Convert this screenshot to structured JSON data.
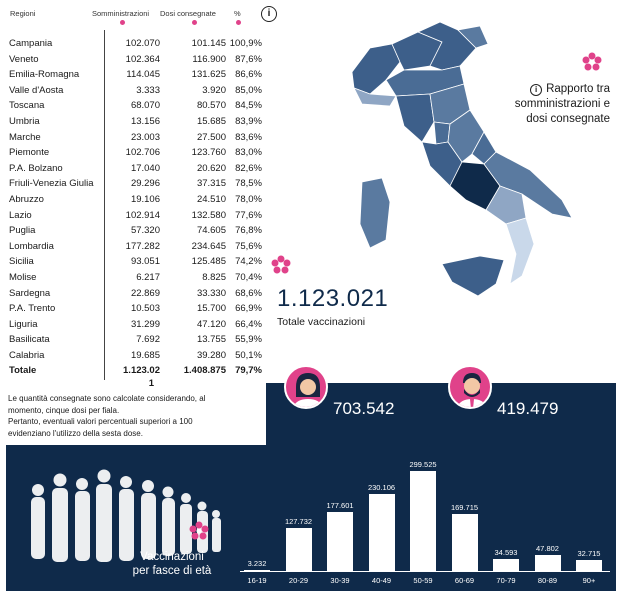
{
  "table": {
    "headers": {
      "region": "Regioni",
      "administered": "Somministrazioni",
      "delivered": "Dosi consegnate",
      "percent": "%"
    },
    "rows": [
      {
        "region": "Campania",
        "administered": "102.070",
        "delivered": "101.145",
        "percent": "100,9%"
      },
      {
        "region": "Veneto",
        "administered": "102.364",
        "delivered": "116.900",
        "percent": "87,6%"
      },
      {
        "region": "Emilia-Romagna",
        "administered": "114.045",
        "delivered": "131.625",
        "percent": "86,6%"
      },
      {
        "region": "Valle d'Aosta",
        "administered": "3.333",
        "delivered": "3.920",
        "percent": "85,0%"
      },
      {
        "region": "Toscana",
        "administered": "68.070",
        "delivered": "80.570",
        "percent": "84,5%"
      },
      {
        "region": "Umbria",
        "administered": "13.156",
        "delivered": "15.685",
        "percent": "83,9%"
      },
      {
        "region": "Marche",
        "administered": "23.003",
        "delivered": "27.500",
        "percent": "83,6%"
      },
      {
        "region": "Piemonte",
        "administered": "102.706",
        "delivered": "123.760",
        "percent": "83,0%"
      },
      {
        "region": "P.A. Bolzano",
        "administered": "17.040",
        "delivered": "20.620",
        "percent": "82,6%"
      },
      {
        "region": "Friuli-Venezia Giulia",
        "administered": "29.296",
        "delivered": "37.315",
        "percent": "78,5%"
      },
      {
        "region": "Abruzzo",
        "administered": "19.106",
        "delivered": "24.510",
        "percent": "78,0%"
      },
      {
        "region": "Lazio",
        "administered": "102.914",
        "delivered": "132.580",
        "percent": "77,6%"
      },
      {
        "region": "Puglia",
        "administered": "57.320",
        "delivered": "74.605",
        "percent": "76,8%"
      },
      {
        "region": "Lombardia",
        "administered": "177.282",
        "delivered": "234.645",
        "percent": "75,6%"
      },
      {
        "region": "Sicilia",
        "administered": "93.051",
        "delivered": "125.485",
        "percent": "74,2%"
      },
      {
        "region": "Molise",
        "administered": "6.217",
        "delivered": "8.825",
        "percent": "70,4%"
      },
      {
        "region": "Sardegna",
        "administered": "22.869",
        "delivered": "33.330",
        "percent": "68,6%"
      },
      {
        "region": "P.A. Trento",
        "administered": "10.503",
        "delivered": "15.700",
        "percent": "66,9%"
      },
      {
        "region": "Liguria",
        "administered": "31.299",
        "delivered": "47.120",
        "percent": "66,4%"
      },
      {
        "region": "Basilicata",
        "administered": "7.692",
        "delivered": "13.755",
        "percent": "55,9%"
      },
      {
        "region": "Calabria",
        "administered": "19.685",
        "delivered": "39.280",
        "percent": "50,1%"
      }
    ],
    "total": {
      "region": "Totale",
      "administered_line1": "1.123.02",
      "administered_line2": "1",
      "delivered": "1.408.875",
      "percent": "79,7%"
    }
  },
  "note": {
    "line1": "Le quantità consegnate sono calcolate considerando, al",
    "line2": "momento, cinque dosi per fiala.",
    "line3": "Pertanto, eventuali valori percentuali superiori a 100",
    "line4": "evidenziano l'utilizzo della sesta dose."
  },
  "info": {
    "icon_glyph": "i",
    "line1": "Rapporto tra",
    "line2": "somministrazioni e",
    "line3": "dosi consegnate"
  },
  "totals": {
    "number": "1.123.021",
    "label": "Totale vaccinazioni"
  },
  "gender": {
    "female": "703.542",
    "male": "419.479"
  },
  "age_chart_title": {
    "line1": "Vaccinazioni",
    "line2": "per fasce di età"
  },
  "chart_data": {
    "type": "bar",
    "categories": [
      "16-19",
      "20-29",
      "30-39",
      "40-49",
      "50-59",
      "60-69",
      "70-79",
      "80-89",
      "90+"
    ],
    "values": [
      3232,
      127732,
      177601,
      230106,
      299525,
      169715,
      34593,
      47802,
      32715
    ],
    "value_labels": [
      "3.232",
      "127.732",
      "177.601",
      "230.106",
      "299.525",
      "169.715",
      "34.593",
      "47.802",
      "32.715"
    ],
    "ylim": [
      0,
      299525
    ]
  },
  "colors": {
    "navy": "#0f2a4a",
    "pink": "#e0428a",
    "map_highlight": "#0f2a4a",
    "map_mid": "#3d5f8a",
    "map_light": "#8fa6c4",
    "map_pale": "#c9d8ea"
  },
  "icons": [
    "info-icon",
    "flower-icon",
    "female-avatar-icon",
    "male-avatar-icon",
    "crowd-icon",
    "italy-map"
  ]
}
